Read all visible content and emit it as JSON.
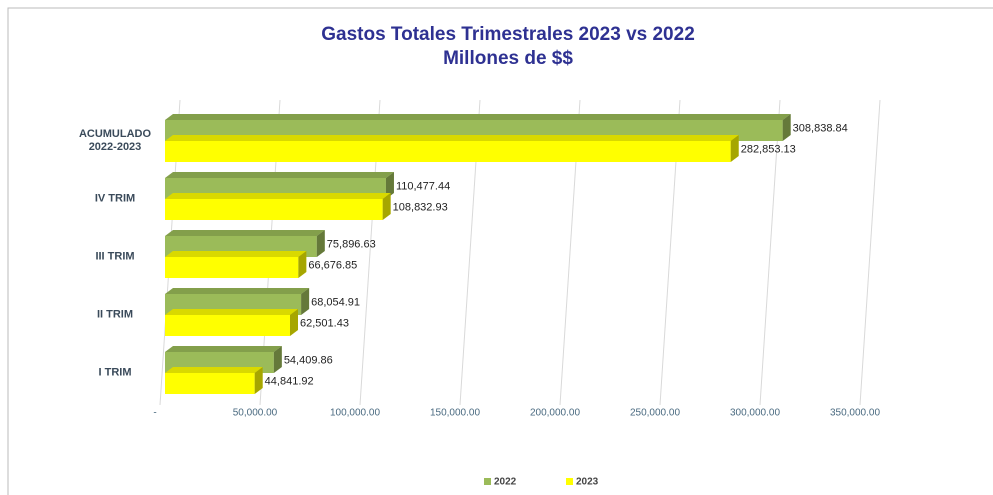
{
  "chart_data": {
    "type": "bar3d_horizontal",
    "title": "Gastos Totales Trimestrales 2023 vs 2022",
    "subtitle": "Millones de $$",
    "categories": [
      "ACUMULADO\n2022-2023",
      "IV TRIM",
      "III TRIM",
      "II TRIM",
      "I TRIM"
    ],
    "series": [
      {
        "name": "2022",
        "color": "#9bbb59",
        "values": [
          308838.84,
          110477.44,
          75896.63,
          68054.91,
          54409.86
        ],
        "value_labels": [
          "308,838.84",
          "110,477.44",
          "75,896.63",
          "68,054.91",
          "54,409.86"
        ]
      },
      {
        "name": "2023",
        "color": "#ffff00",
        "values": [
          282853.13,
          108832.93,
          66676.85,
          62501.43,
          44841.92
        ],
        "value_labels": [
          "282,853.13",
          "108,832.93",
          "66,676.85",
          "62,501.43",
          "44,841.92"
        ]
      }
    ],
    "xlim": [
      0,
      350000
    ],
    "xticks": [
      {
        "value": 0,
        "label": "-"
      },
      {
        "value": 50000,
        "label": "50,000.00"
      },
      {
        "value": 100000,
        "label": "100,000.00"
      },
      {
        "value": 150000,
        "label": "150,000.00"
      },
      {
        "value": 200000,
        "label": "200,000.00"
      },
      {
        "value": 250000,
        "label": "250,000.00"
      },
      {
        "value": 300000,
        "label": "300,000.00"
      },
      {
        "value": 350000,
        "label": "350,000.00"
      }
    ],
    "grid": true,
    "legend": "bottom"
  }
}
